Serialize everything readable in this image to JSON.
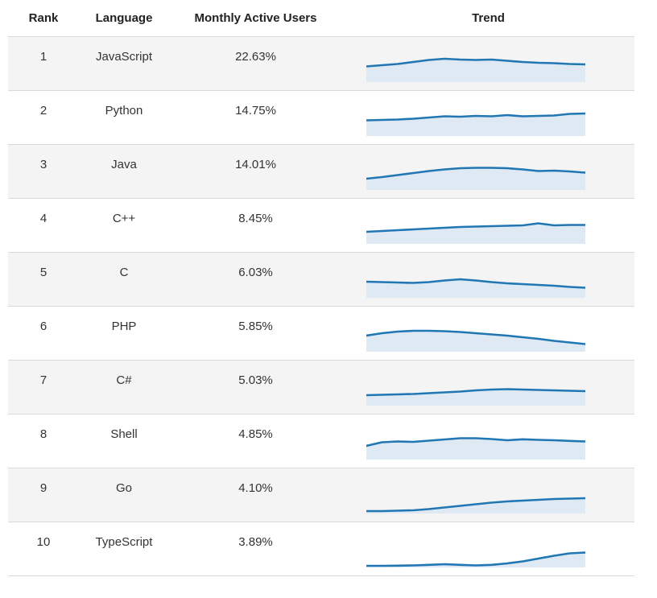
{
  "table": {
    "headers": {
      "rank": "Rank",
      "language": "Language",
      "mau": "Monthly Active Users",
      "trend": "Trend"
    },
    "rows": [
      {
        "rank": "1",
        "language": "JavaScript",
        "mau": "22.63%"
      },
      {
        "rank": "2",
        "language": "Python",
        "mau": "14.75%"
      },
      {
        "rank": "3",
        "language": "Java",
        "mau": "14.01%"
      },
      {
        "rank": "4",
        "language": "C++",
        "mau": "8.45%"
      },
      {
        "rank": "5",
        "language": "C",
        "mau": "6.03%"
      },
      {
        "rank": "6",
        "language": "PHP",
        "mau": "5.85%"
      },
      {
        "rank": "7",
        "language": "C#",
        "mau": "5.03%"
      },
      {
        "rank": "8",
        "language": "Shell",
        "mau": "4.85%"
      },
      {
        "rank": "9",
        "language": "Go",
        "mau": "4.10%"
      },
      {
        "rank": "10",
        "language": "TypeScript",
        "mau": "3.89%"
      }
    ]
  },
  "colors": {
    "sparkline_line": "#2077b4",
    "sparkline_fill": "#dee9f4",
    "row_stripe": "#f4f4f4",
    "row_border": "#d9d9d9",
    "text": "#333333"
  },
  "chart_data": {
    "type": "table",
    "columns": [
      "Rank",
      "Language",
      "Monthly Active Users",
      "Trend"
    ],
    "trend_chart_type": "area",
    "trend_ylim": [
      0,
      46
    ],
    "rows": [
      {
        "rank": 1,
        "language": "JavaScript",
        "monthly_active_users_percent": 22.63,
        "trend_sparkline": [
          19.5,
          21,
          22.5,
          25,
          27.5,
          29,
          28,
          27.5,
          28,
          26.5,
          25,
          24,
          23.5,
          22.5,
          22
        ]
      },
      {
        "rank": 2,
        "language": "Python",
        "monthly_active_users_percent": 14.75,
        "trend_sparkline": [
          19.5,
          20,
          20.5,
          21.5,
          23,
          24.5,
          24,
          25,
          24.5,
          26,
          24.5,
          25,
          25.5,
          27.5,
          28
        ]
      },
      {
        "rank": 3,
        "language": "Java",
        "monthly_active_users_percent": 14.01,
        "trend_sparkline": [
          14,
          16,
          18.5,
          21,
          23.5,
          25.5,
          27,
          27.5,
          27.5,
          27,
          25.5,
          23.5,
          24,
          23,
          21.5
        ]
      },
      {
        "rank": 4,
        "language": "C++",
        "monthly_active_users_percent": 8.45,
        "trend_sparkline": [
          15,
          16,
          17,
          18,
          19,
          20,
          21,
          21.5,
          22,
          22.5,
          23,
          25.5,
          23,
          23.5,
          23.5
        ]
      },
      {
        "rank": 5,
        "language": "C",
        "monthly_active_users_percent": 6.03,
        "trend_sparkline": [
          20,
          19.5,
          19,
          18.5,
          19.5,
          21.5,
          23,
          21.5,
          19.5,
          18,
          17,
          16,
          15,
          13.5,
          12.5
        ]
      },
      {
        "rank": 6,
        "language": "PHP",
        "monthly_active_users_percent": 5.85,
        "trend_sparkline": [
          20,
          23,
          25,
          26,
          26,
          25.5,
          24.5,
          23,
          21.5,
          20,
          18,
          16,
          13.5,
          11.5,
          9.5
        ]
      },
      {
        "rank": 7,
        "language": "C#",
        "monthly_active_users_percent": 5.03,
        "trend_sparkline": [
          13,
          13.5,
          14,
          14.5,
          15.5,
          16.5,
          17.5,
          19,
          20,
          20.5,
          20,
          19.5,
          19,
          18.5,
          18
        ]
      },
      {
        "rank": 8,
        "language": "Shell",
        "monthly_active_users_percent": 4.85,
        "trend_sparkline": [
          17,
          21.5,
          22.5,
          22,
          23.5,
          25,
          26.5,
          26.5,
          25.5,
          24,
          25.2,
          24.5,
          24,
          23.2,
          22.5
        ]
      },
      {
        "rank": 9,
        "language": "Go",
        "monthly_active_users_percent": 4.1,
        "trend_sparkline": [
          3,
          3,
          3.5,
          4,
          5.5,
          7.5,
          9.5,
          11.5,
          13.5,
          15,
          16,
          17,
          18,
          18.5,
          19
        ]
      },
      {
        "rank": 10,
        "language": "TypeScript",
        "monthly_active_users_percent": 3.89,
        "trend_sparkline": [
          2,
          2,
          2.2,
          2.5,
          3.2,
          4,
          3.2,
          2.5,
          3.2,
          5,
          7.5,
          11,
          14.5,
          17.5,
          18.5
        ]
      }
    ]
  }
}
